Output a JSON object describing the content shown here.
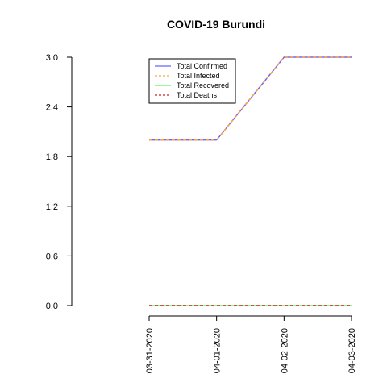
{
  "chart_data": {
    "type": "line",
    "title": "COVID-19 Burundi",
    "xlabel": "",
    "ylabel": "",
    "x": [
      "03-31-2020",
      "04-01-2020",
      "04-02-2020",
      "04-03-2020"
    ],
    "ylim": [
      0,
      3.0
    ],
    "y_ticks": [
      "0.0",
      "0.6",
      "1.2",
      "1.8",
      "2.4",
      "3.0"
    ],
    "grid": false,
    "legend_position": "top-left",
    "series": [
      {
        "name": "Total Confirmed",
        "color": "#6666ff",
        "dash": "solid",
        "values": [
          2,
          2,
          3,
          3
        ]
      },
      {
        "name": "Total Infected",
        "color": "#ffa040",
        "dash": "dashed",
        "values": [
          2,
          2,
          3,
          3
        ]
      },
      {
        "name": "Total Recovered",
        "color": "#66ee66",
        "dash": "solid",
        "values": [
          0,
          0,
          0,
          0
        ]
      },
      {
        "name": "Total Deaths",
        "color": "#cc2222",
        "dash": "dashed",
        "values": [
          0,
          0,
          0,
          0
        ]
      }
    ]
  }
}
